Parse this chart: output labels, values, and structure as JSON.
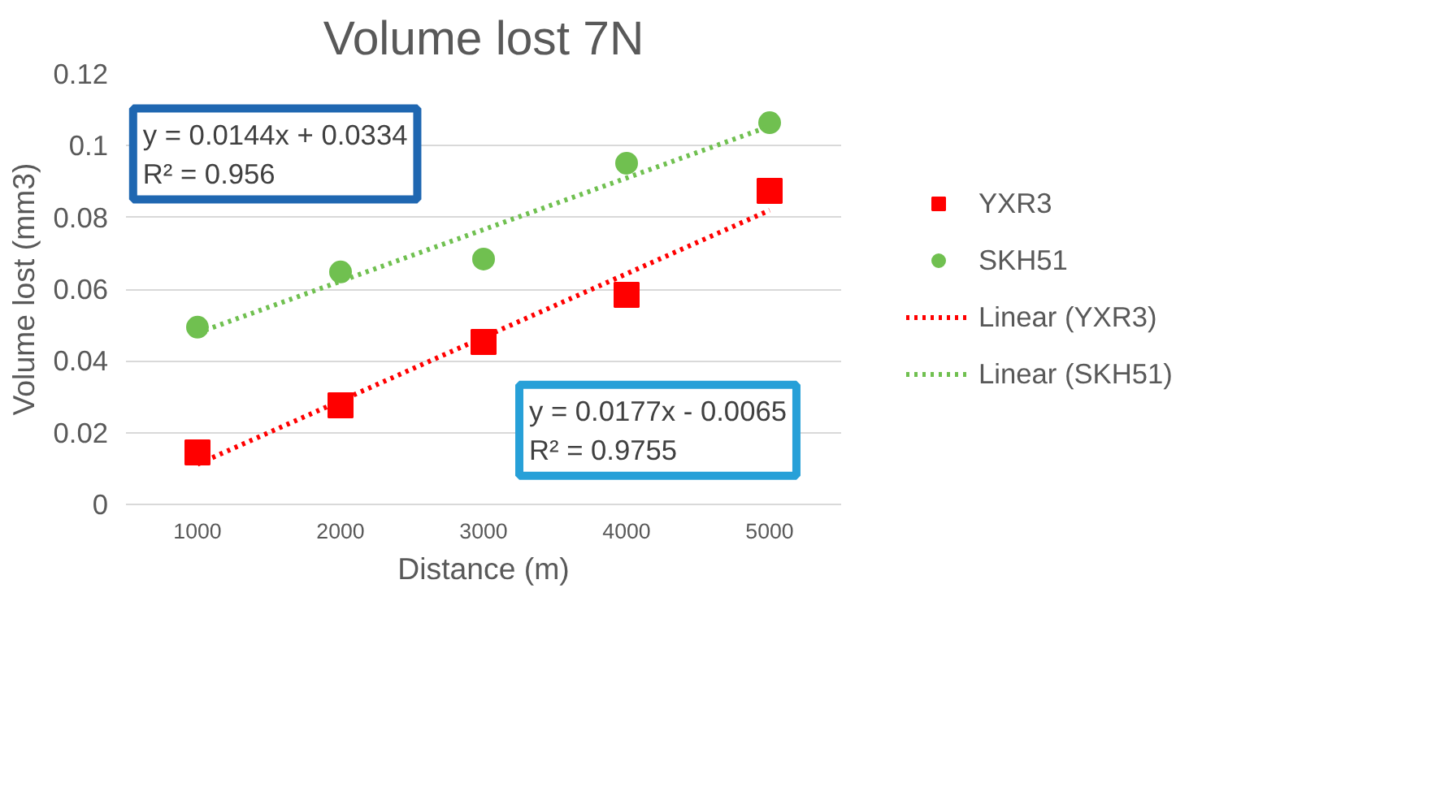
{
  "chart_data": {
    "type": "scatter",
    "title": "Volume lost 7N",
    "xlabel": "Distance (m)",
    "ylabel": "Volume lost (mm3)",
    "categories": [
      "1000",
      "2000",
      "3000",
      "4000",
      "5000"
    ],
    "series": [
      {
        "name": "YXR3",
        "color": "#ff0000",
        "marker": "square",
        "values": [
          0.0145,
          0.0276,
          0.0453,
          0.0584,
          0.0874
        ]
      },
      {
        "name": "SKH51",
        "color": "#70c050",
        "marker": "circle",
        "values": [
          0.0494,
          0.0648,
          0.0684,
          0.0951,
          0.1064
        ]
      },
      {
        "name": "Linear (YXR3)",
        "type": "line",
        "line_style": "dotted",
        "color": "#ff0000",
        "values": [
          0.0112,
          0.0289,
          0.0466,
          0.0643,
          0.082
        ]
      },
      {
        "name": "Linear (SKH51)",
        "type": "line",
        "line_style": "dotted",
        "color": "#70c050",
        "values": [
          0.0478,
          0.0622,
          0.0766,
          0.091,
          0.1054
        ]
      }
    ],
    "ylim": [
      0,
      0.12
    ],
    "yticks": [
      {
        "value": 0,
        "label": "0"
      },
      0.02,
      0.04,
      0.06,
      0.08,
      0.1,
      0.12
    ],
    "grid": "y",
    "legend": "right",
    "annotations": [
      "y = 0.0144x + 0.0334\nR² = 0.956",
      "y = 0.0177x - 0.0065\nR² = 0.9755"
    ]
  }
}
